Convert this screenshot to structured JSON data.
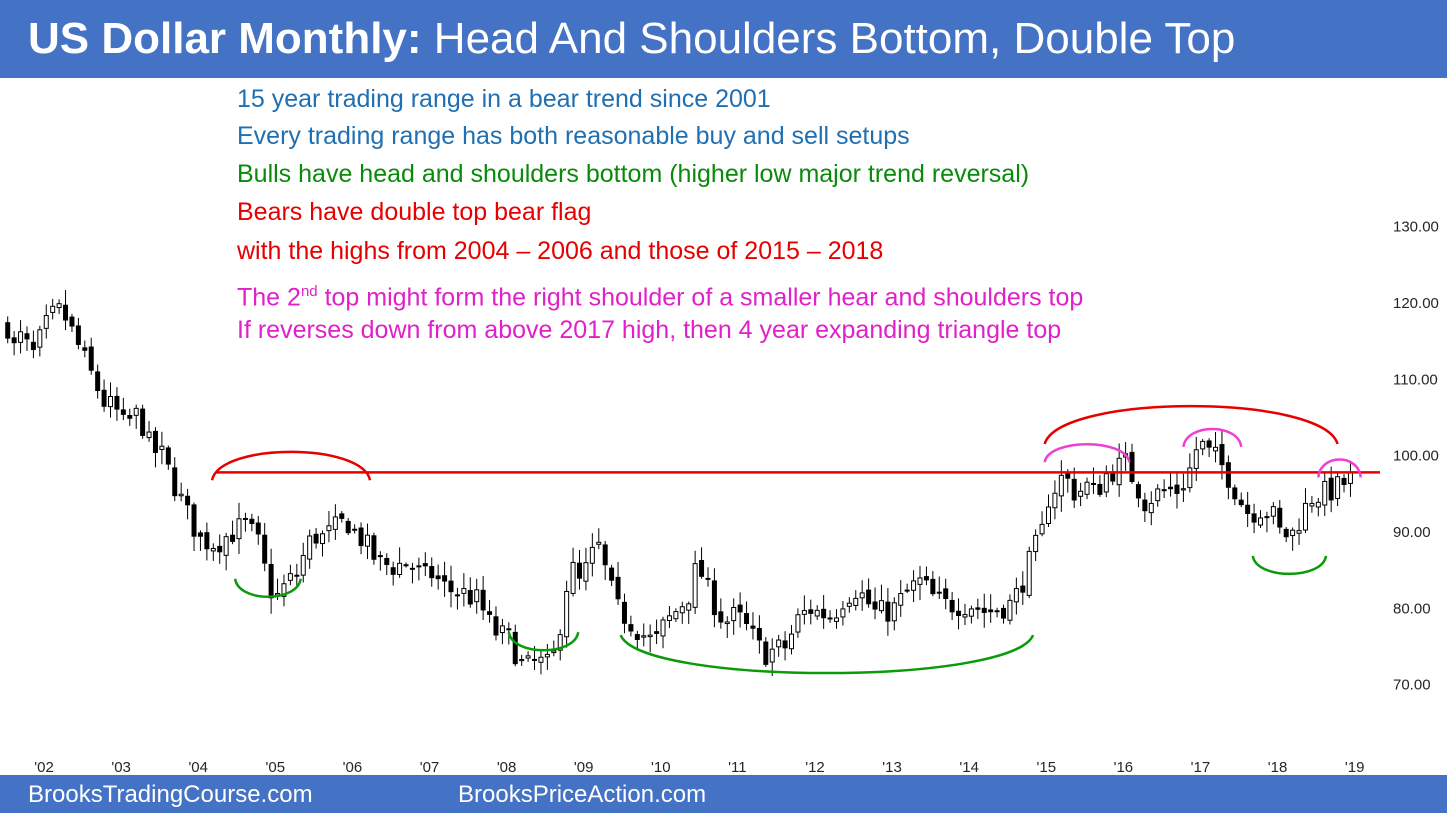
{
  "header": {
    "title_bold": "US Dollar Monthly:",
    "title_rest": " Head And Shoulders Bottom, Double Top"
  },
  "annotations": [
    {
      "text": "15 year trading range in a bear trend since 2001",
      "color": "#1f6fb2"
    },
    {
      "text": "Every trading range has both reasonable buy and sell setups",
      "color": "#1f6fb2"
    },
    {
      "text": "Bulls have head and shoulders bottom (higher low major trend reversal)",
      "color": "#0a8a0a"
    },
    {
      "text": "Bears have double top bear flag",
      "color": "#e60000"
    },
    {
      "text": "with the highs from 2004 – 2006 and those of 2015 – 2018",
      "color": "#e60000"
    },
    {
      "text_pre": "The 2",
      "text_sup": "nd",
      "text_post": " top might form the right shoulder of a smaller hear and shoulders top",
      "color": "#e020c8"
    },
    {
      "text": "If reverses down from above 2017 high, then 4 year expanding triangle top",
      "color": "#e020c8"
    }
  ],
  "footer": {
    "left": "BrooksTradingCourse.com",
    "right": "BrooksPriceAction.com"
  },
  "colors": {
    "header_bg": "#4472c4",
    "resistance_line": "#e60000",
    "bull_arc": "#0a9a0a",
    "bear_arc": "#e60000",
    "shoulder_arc": "#f040d0",
    "candle": "#000000"
  },
  "chart_data": {
    "type": "candlestick",
    "title": "US Dollar Monthly",
    "x_tick_labels": [
      "'02",
      "'03",
      "'04",
      "'05",
      "'06",
      "'07",
      "'08",
      "'09",
      "'10",
      "'11",
      "'12",
      "'13",
      "'14",
      "'15",
      "'16",
      "'17",
      "'18",
      "'19"
    ],
    "y_tick_labels": [
      "130.00",
      "120.00",
      "110.00",
      "100.00",
      "90.00",
      "80.00",
      "70.00"
    ],
    "ylim": [
      63,
      139
    ],
    "xlim": [
      2001.4,
      2019.3
    ],
    "resistance_level": 97.8,
    "close_path": [
      [
        2001.5,
        117.0
      ],
      [
        2001.58,
        114.0
      ],
      [
        2001.66,
        115.5
      ],
      [
        2001.83,
        113.2
      ],
      [
        2002.0,
        117.0
      ],
      [
        2002.1,
        118.5
      ],
      [
        2002.2,
        119.0
      ],
      [
        2002.3,
        117.0
      ],
      [
        2002.5,
        112.5
      ],
      [
        2002.75,
        107.0
      ],
      [
        2002.9,
        106.0
      ],
      [
        2003.0,
        104.0
      ],
      [
        2003.2,
        105.5
      ],
      [
        2003.35,
        101.0
      ],
      [
        2003.5,
        100.0
      ],
      [
        2003.65,
        96.5
      ],
      [
        2003.8,
        93.0
      ],
      [
        2004.0,
        89.0
      ],
      [
        2004.2,
        88.5
      ],
      [
        2004.35,
        89.5
      ],
      [
        2004.5,
        90.5
      ],
      [
        2004.6,
        91.0
      ],
      [
        2004.75,
        88.5
      ],
      [
        2004.9,
        82.5
      ],
      [
        2005.0,
        81.5
      ],
      [
        2005.1,
        83.0
      ],
      [
        2005.25,
        84.5
      ],
      [
        2005.4,
        88.5
      ],
      [
        2005.5,
        89.5
      ],
      [
        2005.6,
        89.2
      ],
      [
        2005.75,
        90.5
      ],
      [
        2005.9,
        91.5
      ],
      [
        2006.0,
        90.0
      ],
      [
        2006.1,
        89.0
      ],
      [
        2006.3,
        86.0
      ],
      [
        2006.5,
        85.5
      ],
      [
        2006.7,
        86.0
      ],
      [
        2006.9,
        84.0
      ],
      [
        2007.0,
        84.5
      ],
      [
        2007.2,
        82.5
      ],
      [
        2007.4,
        82.0
      ],
      [
        2007.6,
        81.0
      ],
      [
        2007.8,
        77.0
      ],
      [
        2008.0,
        76.0
      ],
      [
        2008.2,
        72.0
      ],
      [
        2008.35,
        73.0
      ],
      [
        2008.5,
        72.5
      ],
      [
        2008.6,
        74.0
      ],
      [
        2008.7,
        80.0
      ],
      [
        2008.8,
        86.0
      ],
      [
        2008.9,
        83.0
      ],
      [
        2009.0,
        85.0
      ],
      [
        2009.15,
        88.5
      ],
      [
        2009.25,
        85.0
      ],
      [
        2009.4,
        80.0
      ],
      [
        2009.6,
        78.0
      ],
      [
        2009.8,
        76.0
      ],
      [
        2009.9,
        75.5
      ],
      [
        2010.0,
        77.5
      ],
      [
        2010.2,
        80.0
      ],
      [
        2010.35,
        82.0
      ],
      [
        2010.45,
        86.0
      ],
      [
        2010.55,
        83.0
      ],
      [
        2010.7,
        80.0
      ],
      [
        2010.8,
        78.0
      ],
      [
        2010.9,
        79.0
      ],
      [
        2011.0,
        78.5
      ],
      [
        2011.15,
        76.5
      ],
      [
        2011.3,
        74.0
      ],
      [
        2011.45,
        74.5
      ],
      [
        2011.6,
        75.0
      ],
      [
        2011.75,
        78.5
      ],
      [
        2011.9,
        80.0
      ],
      [
        2012.0,
        79.5
      ],
      [
        2012.2,
        79.0
      ],
      [
        2012.35,
        81.5
      ],
      [
        2012.5,
        82.5
      ],
      [
        2012.6,
        81.5
      ],
      [
        2012.75,
        79.5
      ],
      [
        2012.9,
        79.5
      ],
      [
        2013.0,
        80.0
      ],
      [
        2013.2,
        82.5
      ],
      [
        2013.35,
        83.5
      ],
      [
        2013.5,
        81.5
      ],
      [
        2013.65,
        80.5
      ],
      [
        2013.8,
        80.5
      ],
      [
        2014.0,
        80.5
      ],
      [
        2014.2,
        79.5
      ],
      [
        2014.35,
        80.0
      ],
      [
        2014.5,
        80.5
      ],
      [
        2014.6,
        82.0
      ],
      [
        2014.7,
        84.5
      ],
      [
        2014.8,
        87.5
      ],
      [
        2014.9,
        89.0
      ],
      [
        2015.0,
        94.5
      ],
      [
        2015.2,
        97.5
      ],
      [
        2015.35,
        95.0
      ],
      [
        2015.5,
        96.0
      ],
      [
        2015.6,
        95.0
      ],
      [
        2015.75,
        97.5
      ],
      [
        2015.9,
        98.5
      ],
      [
        2016.0,
        99.0
      ],
      [
        2016.1,
        97.0
      ],
      [
        2016.25,
        94.0
      ],
      [
        2016.4,
        95.0
      ],
      [
        2016.55,
        95.5
      ],
      [
        2016.7,
        95.5
      ],
      [
        2016.85,
        98.5
      ],
      [
        2016.95,
        102.0
      ],
      [
        2017.05,
        100.5
      ],
      [
        2017.2,
        99.5
      ],
      [
        2017.35,
        97.0
      ],
      [
        2017.5,
        94.0
      ],
      [
        2017.6,
        92.5
      ],
      [
        2017.75,
        93.0
      ],
      [
        2017.9,
        92.5
      ],
      [
        2018.0,
        90.0
      ],
      [
        2018.15,
        89.5
      ],
      [
        2018.25,
        91.5
      ],
      [
        2018.4,
        94.5
      ],
      [
        2018.55,
        95.0
      ],
      [
        2018.7,
        95.5
      ],
      [
        2018.85,
        96.5
      ],
      [
        2018.95,
        97.0
      ]
    ],
    "annotation_arcs": [
      {
        "kind": "bull",
        "x": [
          2004.45,
          2005.3
        ],
        "y": 81.5,
        "dir": "down"
      },
      {
        "kind": "bull",
        "x": [
          2008.0,
          2008.9
        ],
        "y": 74.5,
        "dir": "down"
      },
      {
        "kind": "bull",
        "x": [
          2009.45,
          2014.8
        ],
        "y": 71.5,
        "dir": "down"
      },
      {
        "kind": "bull",
        "x": [
          2017.65,
          2018.6
        ],
        "y": 84.5,
        "dir": "down"
      },
      {
        "kind": "bear",
        "x": [
          2004.15,
          2006.2
        ],
        "y": 100.5,
        "dir": "up"
      },
      {
        "kind": "bear",
        "x": [
          2014.95,
          2018.75
        ],
        "y": 106.5,
        "dir": "up"
      },
      {
        "kind": "shoulder",
        "x": [
          2014.95,
          2016.05
        ],
        "y": 101.5,
        "dir": "up"
      },
      {
        "kind": "shoulder",
        "x": [
          2016.75,
          2017.5
        ],
        "y": 103.5,
        "dir": "up"
      },
      {
        "kind": "shoulder",
        "x": [
          2018.5,
          2019.05
        ],
        "y": 99.5,
        "dir": "up"
      }
    ]
  }
}
